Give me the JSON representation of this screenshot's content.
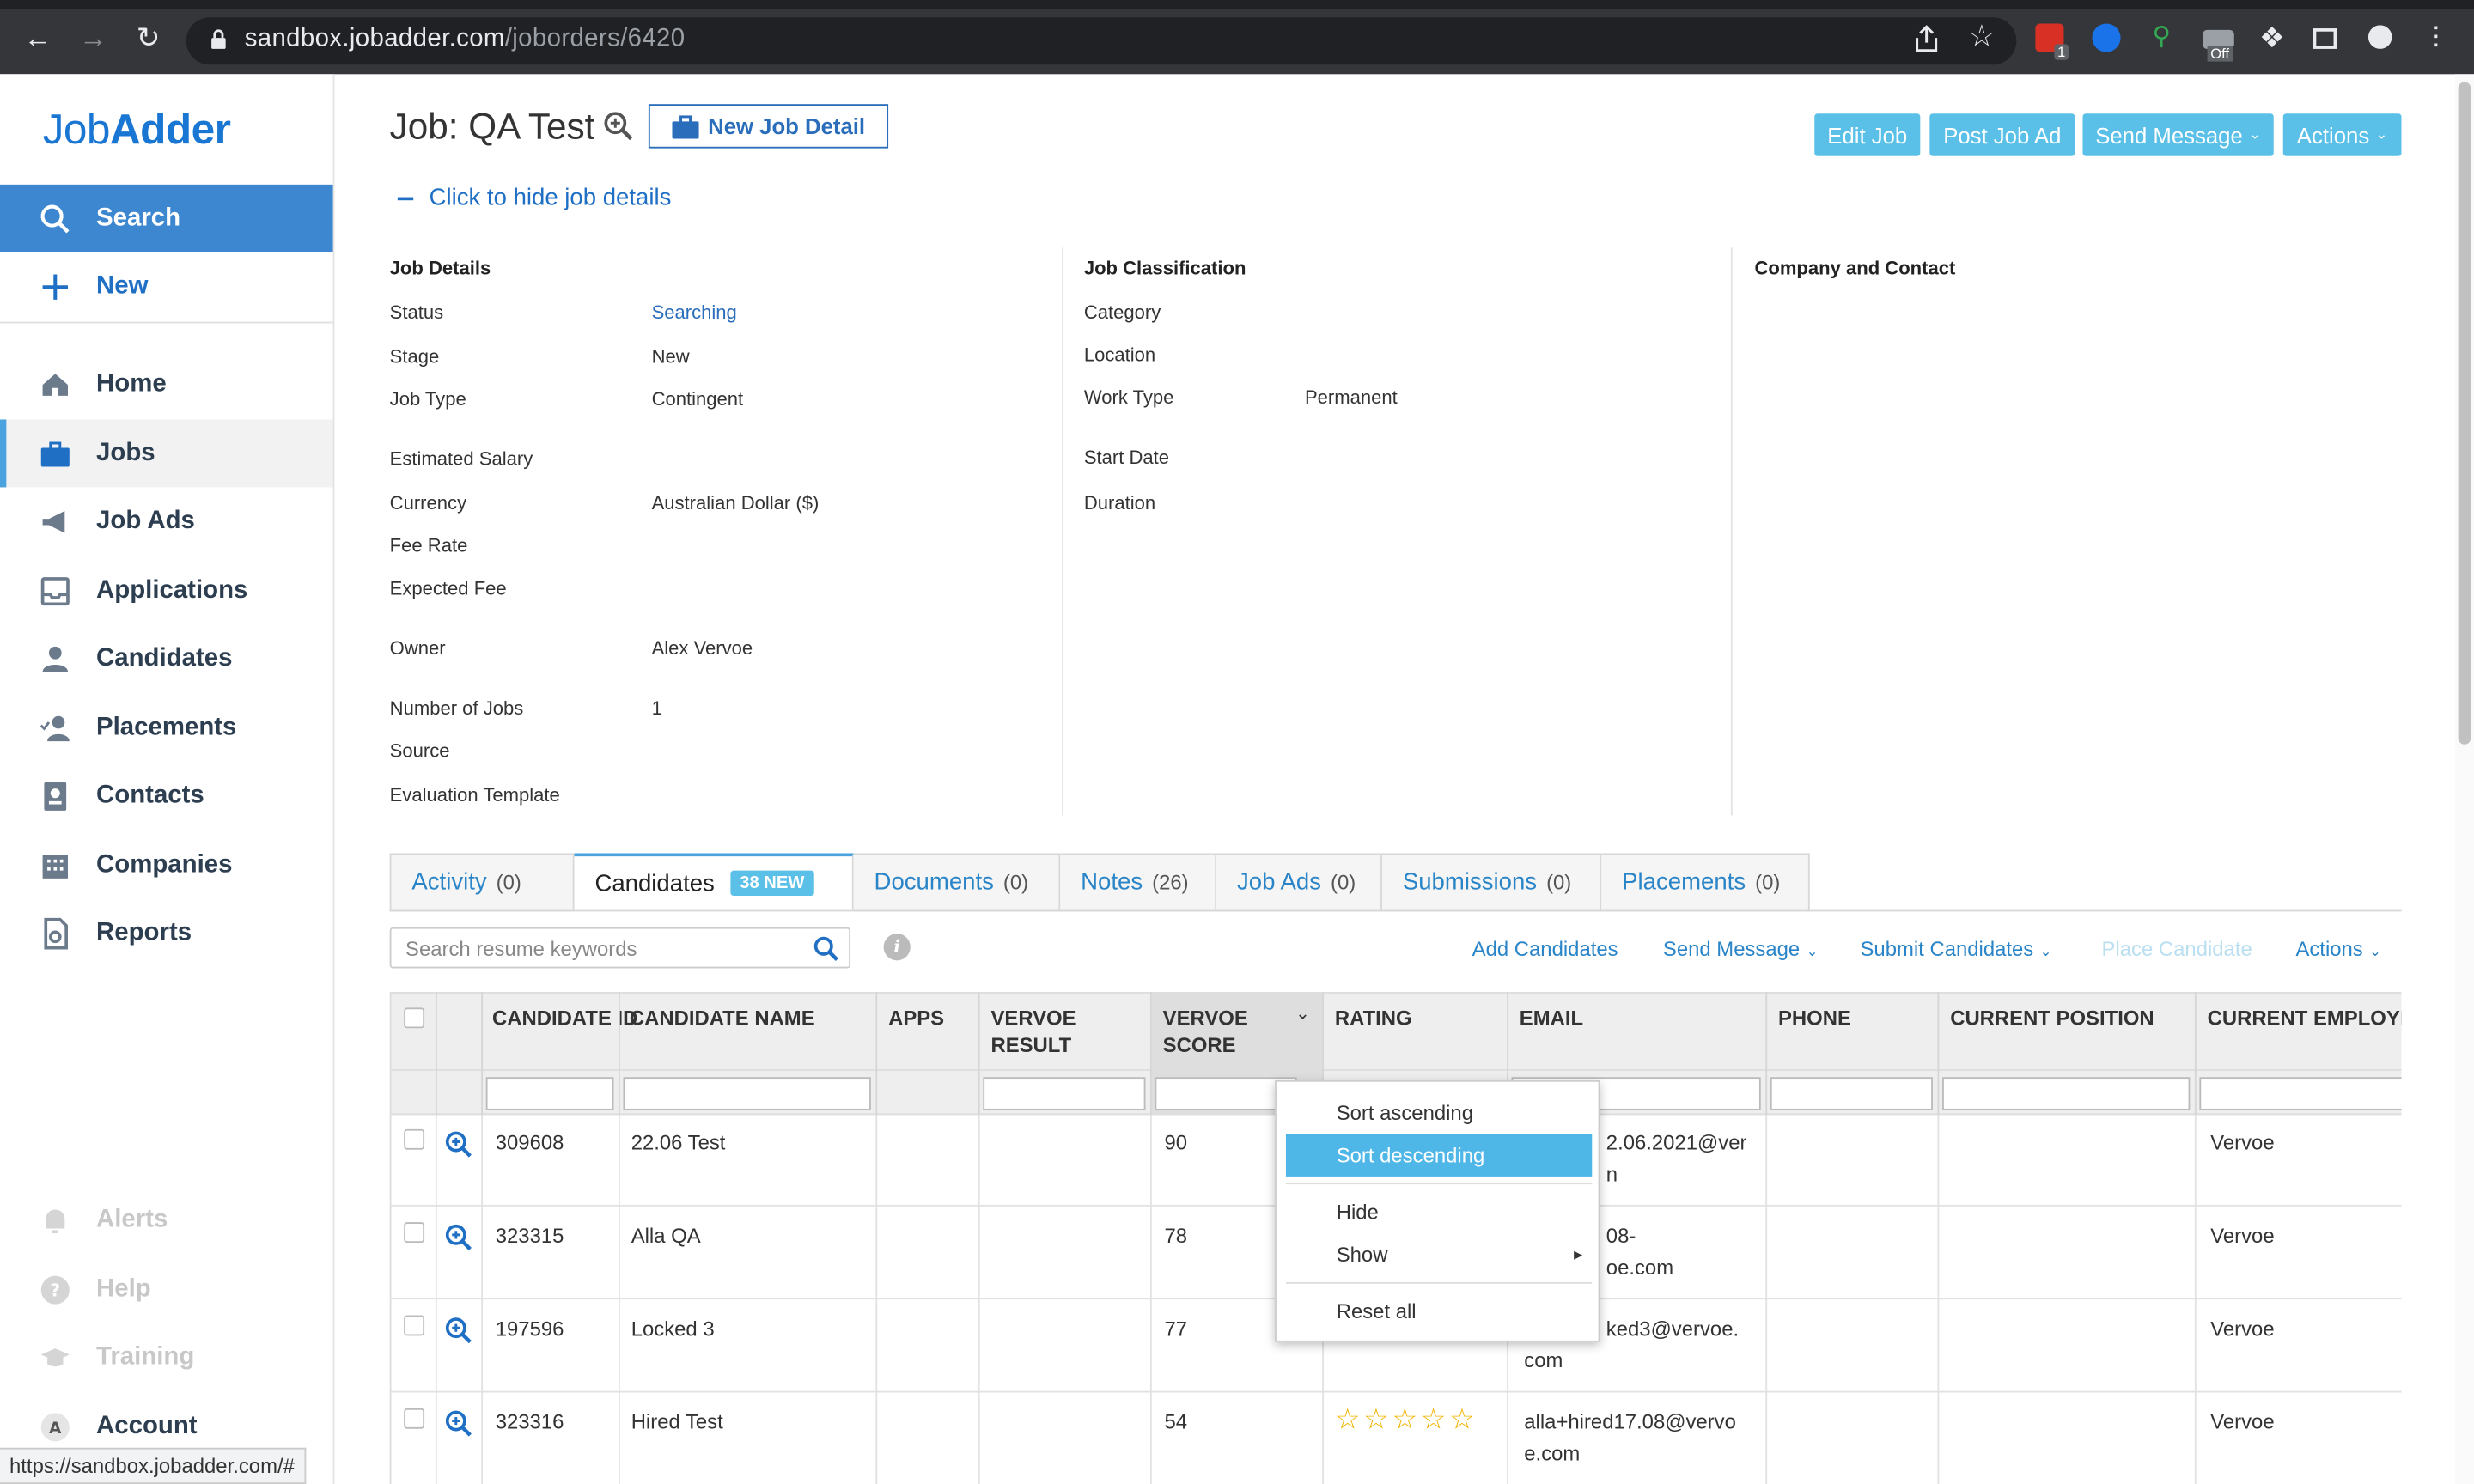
{
  "browser": {
    "url_host": "sandbox.jobadder.com",
    "url_path": "/joborders/6420",
    "status_url": "https://sandbox.jobadder.com/#",
    "ext_badge": "1",
    "ext_off": "Off"
  },
  "sidebar": {
    "logo_a": "Job",
    "logo_b": "Adder",
    "search": "Search",
    "new": "New",
    "items": [
      "Home",
      "Jobs",
      "Job Ads",
      "Applications",
      "Candidates",
      "Placements",
      "Contacts",
      "Companies",
      "Reports"
    ],
    "bottom": [
      "Alerts",
      "Help",
      "Training",
      "Account"
    ]
  },
  "header": {
    "title": "Job: QA Test",
    "new_job_detail": "New Job Detail",
    "hide_details": "Click to hide job details",
    "buttons": {
      "edit_job": "Edit Job",
      "post_job_ad": "Post Job Ad",
      "send_message": "Send Message",
      "actions": "Actions"
    }
  },
  "job_details": {
    "title": "Job Details",
    "status_label": "Status",
    "status_value": "Searching",
    "stage_label": "Stage",
    "stage_value": "New",
    "job_type_label": "Job Type",
    "job_type_value": "Contingent",
    "salary_label": "Estimated Salary",
    "currency_label": "Currency",
    "currency_value": "Australian Dollar ($)",
    "fee_rate_label": "Fee Rate",
    "expected_fee_label": "Expected Fee",
    "owner_label": "Owner",
    "owner_value": "Alex Vervoe",
    "num_jobs_label": "Number of Jobs",
    "num_jobs_value": "1",
    "source_label": "Source",
    "eval_label": "Evaluation Template"
  },
  "classification": {
    "title": "Job Classification",
    "category_label": "Category",
    "location_label": "Location",
    "work_type_label": "Work Type",
    "work_type_value": "Permanent",
    "start_date_label": "Start Date",
    "duration_label": "Duration"
  },
  "company": {
    "title": "Company and Contact"
  },
  "tabs": [
    {
      "label": "Activity",
      "count": "(0)"
    },
    {
      "label": "Candidates",
      "badge": "38 NEW"
    },
    {
      "label": "Documents",
      "count": "(0)"
    },
    {
      "label": "Notes",
      "count": "(26)"
    },
    {
      "label": "Job Ads",
      "count": "(0)"
    },
    {
      "label": "Submissions",
      "count": "(0)"
    },
    {
      "label": "Placements",
      "count": "(0)"
    }
  ],
  "toolbar": {
    "search_placeholder": "Search resume keywords",
    "add_candidates": "Add Candidates",
    "send_message": "Send Message",
    "submit_candidates": "Submit Candidates",
    "place_candidate": "Place Candidate",
    "actions": "Actions"
  },
  "grid": {
    "columns": [
      "CANDIDATE ID",
      "CANDIDATE NAME",
      "APPS",
      "VERVOE RESULT",
      "VERVOE SCORE",
      "RATING",
      "EMAIL",
      "PHONE",
      "CURRENT POSITION",
      "CURRENT EMPLOYER"
    ],
    "rows": [
      {
        "id": "309608",
        "name": "22.06 Test",
        "score": "90",
        "email_a": "2.06.2021@ver",
        "email_b": "n",
        "employer": "Vervoe"
      },
      {
        "id": "323315",
        "name": "Alla QA",
        "score": "78",
        "email_a": "08-",
        "email_b": "oe.com",
        "employer": "Vervoe"
      },
      {
        "id": "197596",
        "name": "Locked 3",
        "score": "77",
        "email_a": "ked3@vervoe.",
        "email_b": "com",
        "employer": "Vervoe"
      },
      {
        "id": "323316",
        "name": "Hired Test",
        "score": "54",
        "email_a": "alla+hired17.08@vervo",
        "email_b": "e.com",
        "employer": "Vervoe",
        "stars": "☆☆☆☆☆"
      }
    ]
  },
  "context_menu": {
    "sort_ascending": "Sort ascending",
    "sort_descending": "Sort descending",
    "hide": "Hide",
    "show": "Show",
    "reset_all": "Reset all"
  },
  "colors": {
    "accent": "#3d87d0",
    "button": "#5bc0e8",
    "link": "#2a85c8"
  }
}
